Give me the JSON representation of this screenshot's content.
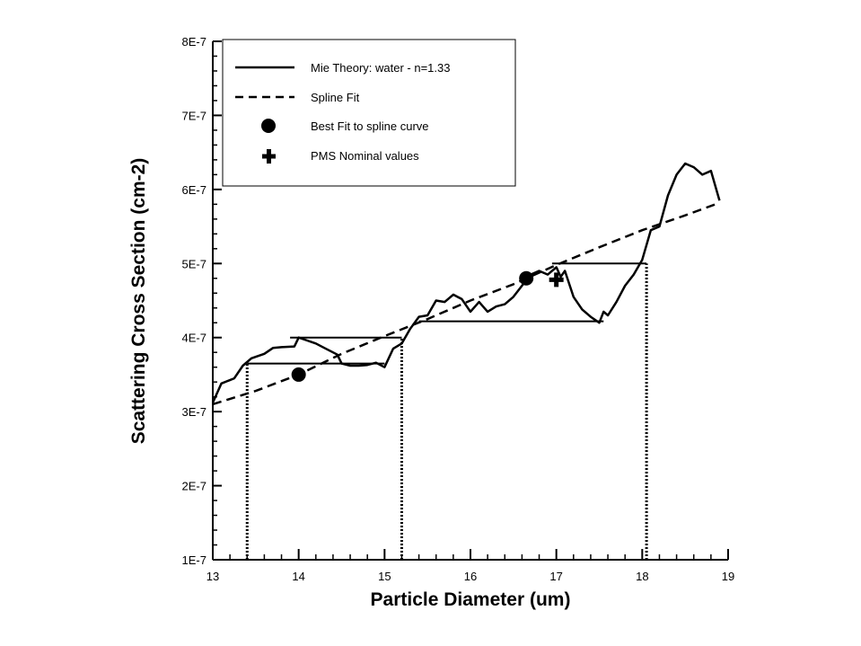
{
  "chart_data": {
    "type": "line",
    "xlabel": "Particle Diameter (um)",
    "ylabel": "Scattering Cross Section (cm-2)",
    "xlim": [
      13,
      19
    ],
    "ylim": [
      1e-07,
      8e-07
    ],
    "x_ticks": [
      13,
      14,
      15,
      16,
      17,
      18,
      19
    ],
    "x_tick_labels": [
      "13",
      "14",
      "15",
      "16",
      "17",
      "18",
      "19"
    ],
    "y_ticks": [
      1e-07,
      2e-07,
      3e-07,
      4e-07,
      5e-07,
      6e-07,
      7e-07,
      8e-07
    ],
    "y_tick_labels": [
      "1E-7",
      "2E-7",
      "3E-7",
      "4E-7",
      "5E-7",
      "6E-7",
      "7E-7",
      "8E-7"
    ],
    "legend": {
      "position": "top-left",
      "entries": [
        {
          "label": "Mie Theory: water - n=1.33",
          "style": "solid"
        },
        {
          "label": "Spline Fit",
          "style": "dashed"
        },
        {
          "label": "Best Fit to spline curve",
          "style": "circle"
        },
        {
          "label": "PMS Nominal values",
          "style": "plus"
        }
      ]
    },
    "series": [
      {
        "name": "Mie Theory: water - n=1.33",
        "style": "solid",
        "x": [
          13.0,
          13.1,
          13.25,
          13.35,
          13.45,
          13.6,
          13.7,
          13.8,
          13.95,
          14.0,
          14.1,
          14.2,
          14.3,
          14.4,
          14.45,
          14.5,
          14.6,
          14.7,
          14.8,
          14.9,
          15.0,
          15.1,
          15.2,
          15.3,
          15.4,
          15.5,
          15.6,
          15.7,
          15.8,
          15.9,
          16.0,
          16.1,
          16.2,
          16.3,
          16.4,
          16.5,
          16.6,
          16.7,
          16.8,
          16.9,
          17.0,
          17.05,
          17.1,
          17.2,
          17.3,
          17.4,
          17.5,
          17.55,
          17.6,
          17.7,
          17.8,
          17.9,
          18.0,
          18.1,
          18.2,
          18.3,
          18.4,
          18.5,
          18.6,
          18.7,
          18.8,
          18.9
        ],
        "y": [
          3.12e-07,
          3.38e-07,
          3.45e-07,
          3.62e-07,
          3.72e-07,
          3.78e-07,
          3.86e-07,
          3.87e-07,
          3.88e-07,
          4e-07,
          3.96e-07,
          3.92e-07,
          3.86e-07,
          3.8e-07,
          3.77e-07,
          3.65e-07,
          3.62e-07,
          3.62e-07,
          3.63e-07,
          3.66e-07,
          3.6e-07,
          3.85e-07,
          3.92e-07,
          4.12e-07,
          4.28e-07,
          4.3e-07,
          4.5e-07,
          4.48e-07,
          4.58e-07,
          4.52e-07,
          4.35e-07,
          4.48e-07,
          4.35e-07,
          4.42e-07,
          4.45e-07,
          4.55e-07,
          4.7e-07,
          4.85e-07,
          4.9e-07,
          4.85e-07,
          4.95e-07,
          4.82e-07,
          4.9e-07,
          4.55e-07,
          4.38e-07,
          4.28e-07,
          4.2e-07,
          4.35e-07,
          4.3e-07,
          4.48e-07,
          4.7e-07,
          4.85e-07,
          5.05e-07,
          5.45e-07,
          5.5e-07,
          5.92e-07,
          6.2e-07,
          6.35e-07,
          6.3e-07,
          6.2e-07,
          6.25e-07,
          5.85e-07
        ]
      },
      {
        "name": "Spline Fit",
        "style": "dashed",
        "x": [
          13.0,
          13.5,
          14.0,
          14.5,
          15.0,
          15.5,
          16.0,
          16.5,
          17.0,
          17.5,
          18.0,
          18.5,
          18.9
        ],
        "y": [
          3.1e-07,
          3.28e-07,
          3.5e-07,
          3.78e-07,
          4.02e-07,
          4.25e-07,
          4.5e-07,
          4.72e-07,
          4.98e-07,
          5.22e-07,
          5.45e-07,
          5.65e-07,
          5.82e-07
        ]
      },
      {
        "name": "Best Fit to spline curve",
        "style": "circle",
        "x": [
          14.0,
          16.65
        ],
        "y": [
          3.5e-07,
          4.8e-07
        ]
      },
      {
        "name": "PMS Nominal values",
        "style": "plus",
        "x": [
          17.0
        ],
        "y": [
          4.78e-07
        ]
      }
    ],
    "step_segments": [
      {
        "x": [
          13.4,
          15.0
        ],
        "y": 3.65e-07
      },
      {
        "x": [
          13.9,
          15.2
        ],
        "y": 4e-07
      },
      {
        "x": [
          15.4,
          17.55
        ],
        "y": 4.22e-07
      },
      {
        "x": [
          16.95,
          18.05
        ],
        "y": 5e-07
      }
    ],
    "vertical_dotted_lines": [
      {
        "x": 13.4,
        "y": [
          1e-07,
          3.65e-07
        ]
      },
      {
        "x": 15.2,
        "y": [
          1e-07,
          4e-07
        ]
      },
      {
        "x": 18.05,
        "y": [
          1e-07,
          5e-07
        ]
      }
    ]
  }
}
